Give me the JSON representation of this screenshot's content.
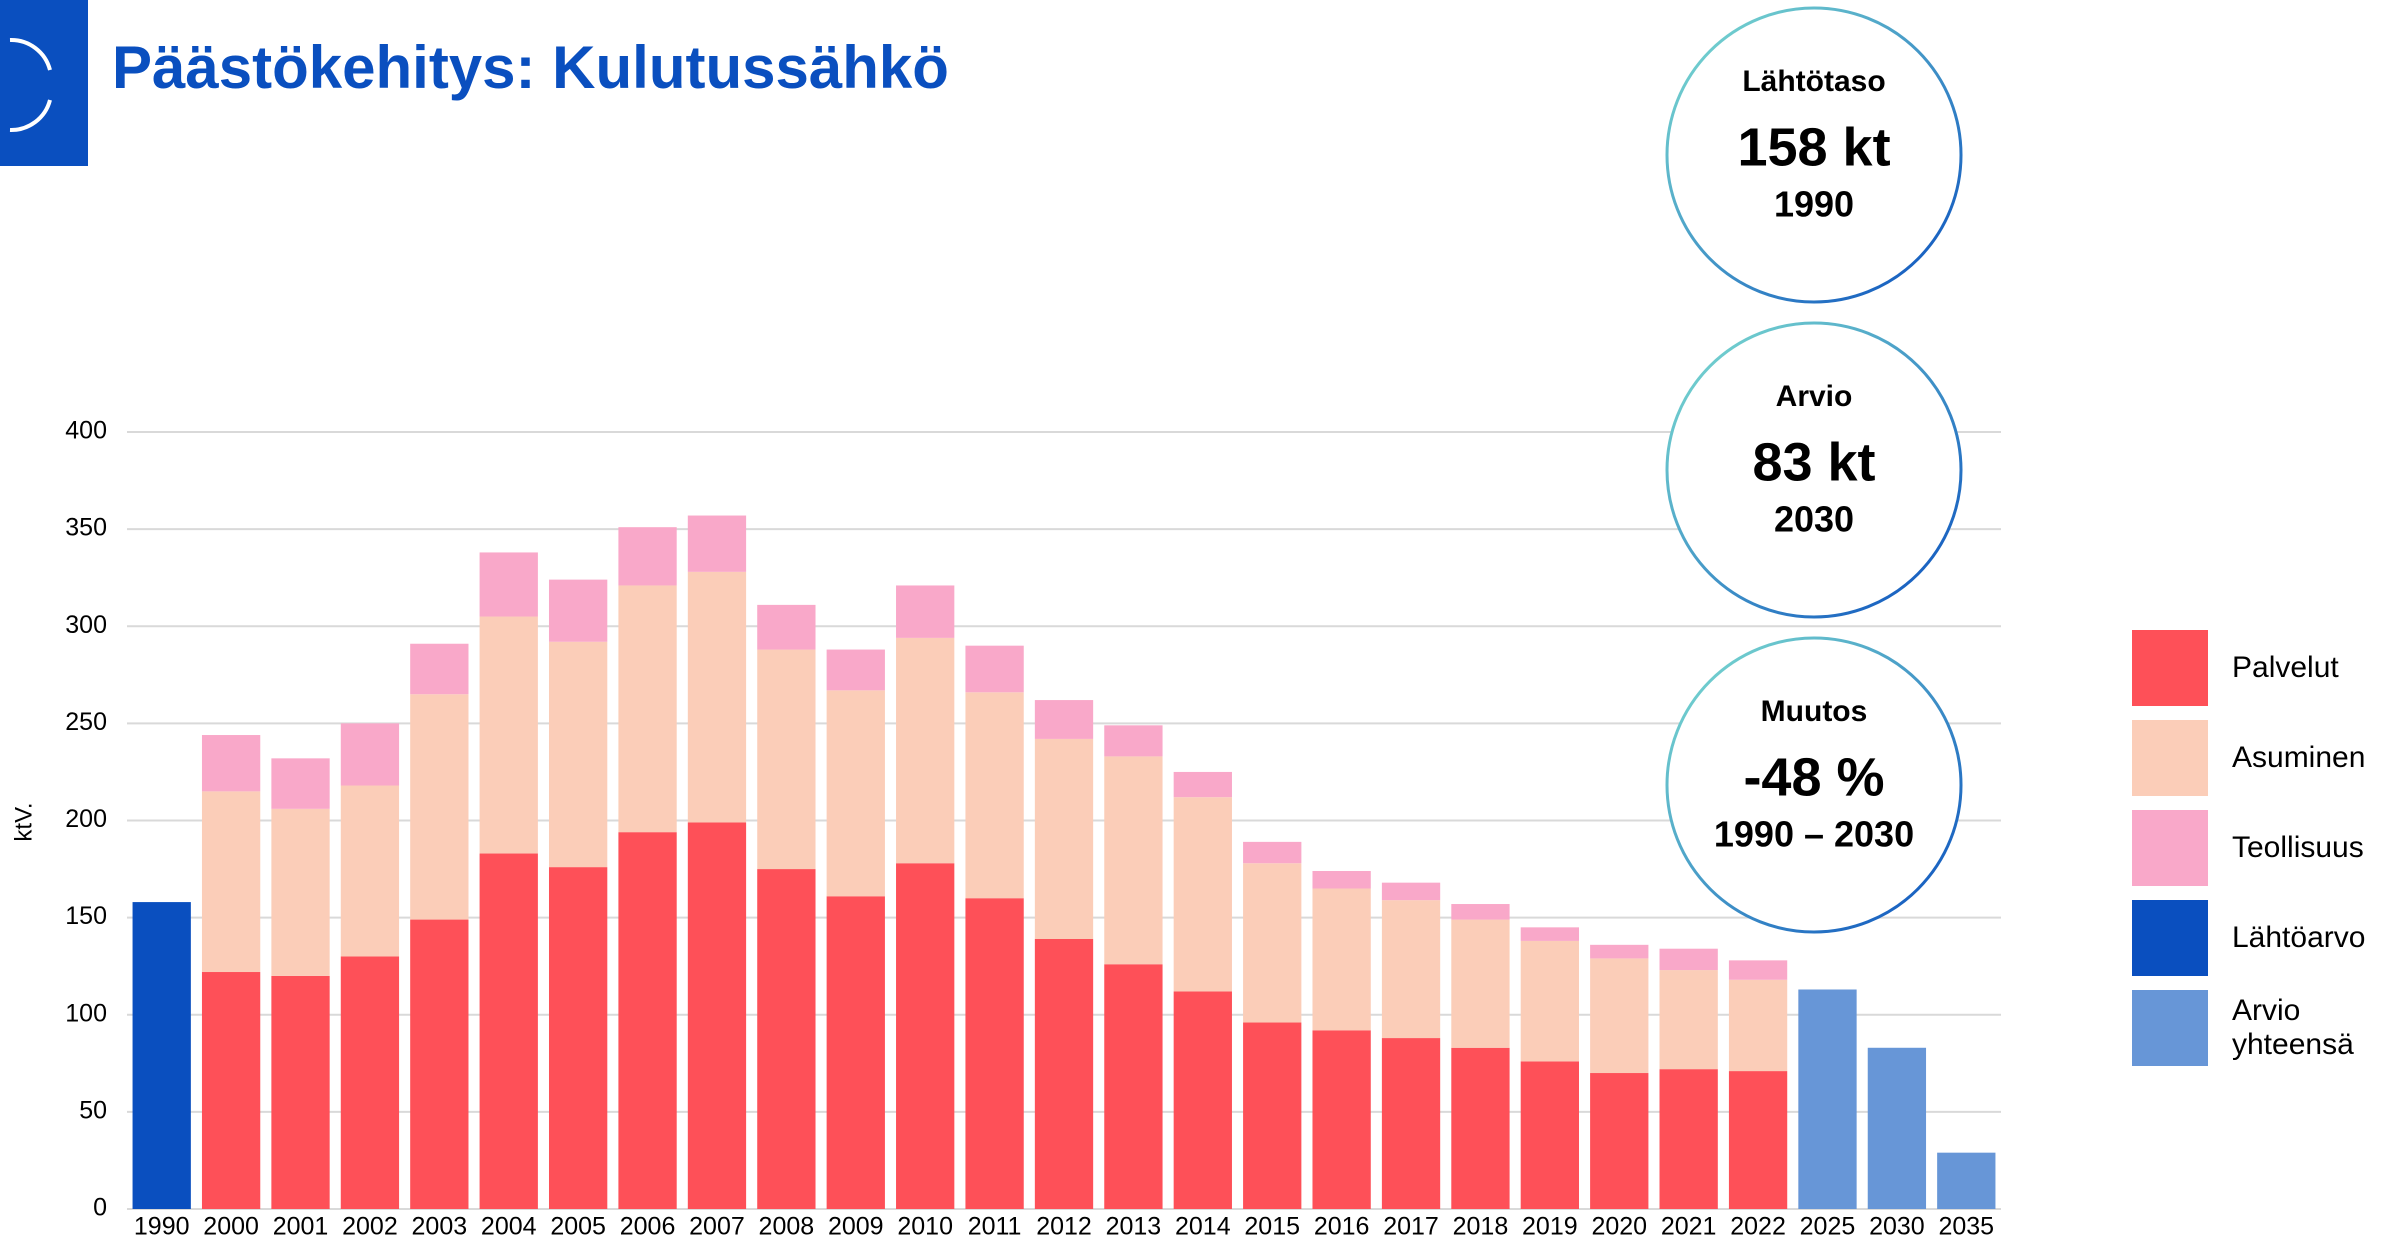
{
  "chart_data": {
    "type": "bar",
    "title": "Päästökehitys: Kulutussähkö",
    "y_label": "ktV.",
    "categories": [
      "1990",
      "2000",
      "2001",
      "2002",
      "2003",
      "2004",
      "2005",
      "2006",
      "2007",
      "2008",
      "2009",
      "2010",
      "2011",
      "2012",
      "2013",
      "2014",
      "2015",
      "2016",
      "2017",
      "2018",
      "2019",
      "2020",
      "2021",
      "2022",
      "2025",
      "2030",
      "2035"
    ],
    "stacked": true,
    "series": [
      {
        "name": "Palvelut",
        "color": "#fe5058",
        "values": [
          null,
          122,
          120,
          130,
          149,
          183,
          176,
          194,
          199,
          175,
          161,
          178,
          160,
          139,
          126,
          112,
          96,
          92,
          88,
          83,
          76,
          70,
          72,
          71,
          null,
          null,
          null
        ]
      },
      {
        "name": "Asuminen",
        "color": "#fbcdb8",
        "values": [
          null,
          93,
          86,
          88,
          116,
          122,
          116,
          127,
          129,
          113,
          106,
          116,
          106,
          103,
          107,
          100,
          82,
          73,
          71,
          66,
          62,
          59,
          51,
          47,
          null,
          null,
          null
        ]
      },
      {
        "name": "Teollisuus",
        "color": "#f9a8c9",
        "values": [
          null,
          29,
          26,
          32,
          26,
          33,
          32,
          30,
          29,
          23,
          21,
          27,
          24,
          20,
          16,
          13,
          11,
          9,
          9,
          8,
          7,
          7,
          11,
          10,
          null,
          null,
          null
        ]
      },
      {
        "name": "Lähtöarvo",
        "color": "#0a4fbf",
        "values": [
          158,
          null,
          null,
          null,
          null,
          null,
          null,
          null,
          null,
          null,
          null,
          null,
          null,
          null,
          null,
          null,
          null,
          null,
          null,
          null,
          null,
          null,
          null,
          null,
          null,
          null,
          null
        ]
      },
      {
        "name": "Arvio yhteensä",
        "color": "#6796d7",
        "values": [
          null,
          null,
          null,
          null,
          null,
          null,
          null,
          null,
          null,
          null,
          null,
          null,
          null,
          null,
          null,
          null,
          null,
          null,
          null,
          null,
          null,
          null,
          null,
          null,
          113,
          83,
          29
        ]
      }
    ],
    "ylim": [
      0,
      400
    ],
    "yticks": [
      0,
      50,
      100,
      150,
      200,
      250,
      300,
      350,
      400
    ],
    "grid": true,
    "legend": "right",
    "annotations": [
      {
        "label": "Lähtötaso",
        "value": "158 kt",
        "period": "1990"
      },
      {
        "label": "Arvio",
        "value": "83 kt",
        "period": "2030"
      },
      {
        "label": "Muutos",
        "value": "-48 %",
        "period": "1990 – 2030"
      }
    ]
  }
}
